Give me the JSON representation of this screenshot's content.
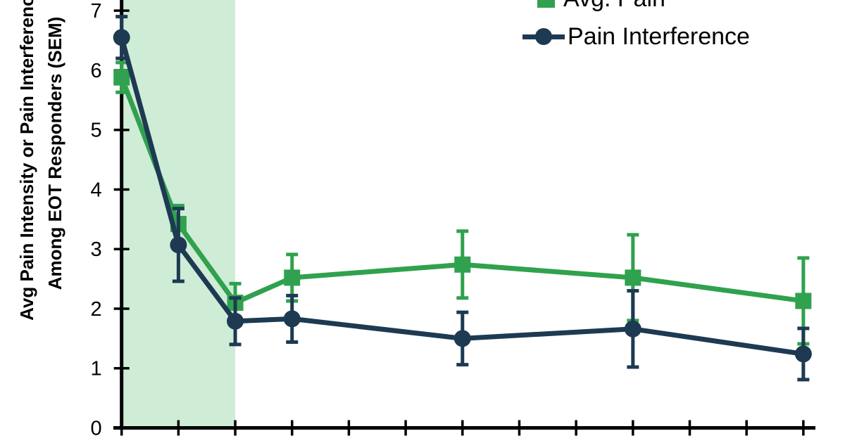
{
  "chart_data": {
    "type": "line",
    "title": "",
    "ylabel_line1": "Avg Pain Intensity or Pain Interference",
    "ylabel_line2": "Among EOT Responders (SEM)",
    "xlabel": "",
    "x": [
      0,
      1,
      2,
      3,
      6,
      9,
      12
    ],
    "x_axis_tick_positions": [
      0,
      1,
      2,
      3,
      4,
      5,
      6,
      7,
      8,
      9,
      10,
      11,
      12
    ],
    "x_tick_labels_visible": false,
    "series": [
      {
        "name": "Avg. Pain",
        "marker": "square",
        "color": "#30a14e",
        "values": [
          5.88,
          3.42,
          2.1,
          2.52,
          2.74,
          2.52,
          2.13
        ],
        "sem": [
          0.25,
          0.31,
          0.32,
          0.39,
          0.56,
          0.72,
          0.72
        ]
      },
      {
        "name": "Pain Interference",
        "marker": "circle",
        "color": "#1d3a52",
        "values": [
          6.55,
          3.07,
          1.79,
          1.83,
          1.5,
          1.66,
          1.24
        ],
        "sem": [
          0.35,
          0.61,
          0.39,
          0.39,
          0.44,
          0.64,
          0.43
        ]
      }
    ],
    "ylim": [
      0,
      7
    ],
    "yticks": [
      0,
      1,
      2,
      3,
      4,
      5,
      6,
      7
    ],
    "error_bars": "SEM",
    "grid": false,
    "legend_position": "top-right",
    "shaded_region": {
      "x_from_tick": 0,
      "x_to_tick": 2,
      "color": "#cfecd7"
    }
  },
  "colors": {
    "avg_pain": "#30a14e",
    "pain_interference": "#1d3a52",
    "shade": "#cfecd7",
    "axis": "#000000"
  }
}
